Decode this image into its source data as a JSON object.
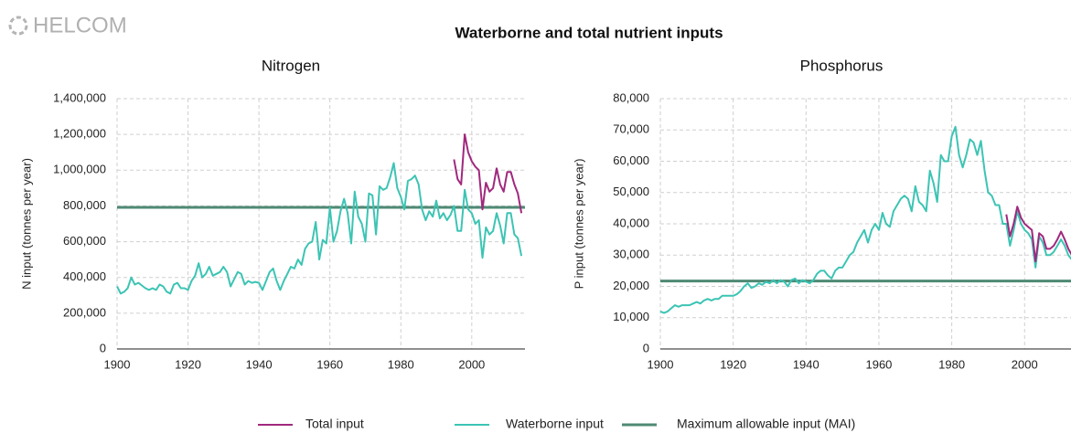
{
  "logo": "HELCOM",
  "title": "Waterborne and total nutrient inputs",
  "chart_data": [
    {
      "type": "line",
      "title": "Nitrogen",
      "ylabel": "N input (tonnes per year)",
      "xlim": [
        1900,
        2015
      ],
      "xticks": [
        1900,
        1920,
        1940,
        1960,
        1980,
        2000
      ],
      "ylim": [
        0,
        1400000
      ],
      "yticks": [
        0,
        {
          "value": 200000,
          "label": "200,000"
        },
        {
          "value": 400000,
          "label": "400,000"
        },
        {
          "value": 600000,
          "label": "600,000"
        },
        {
          "value": 800000,
          "label": "800,000"
        },
        {
          "value": 1000000,
          "label": "1,000,000"
        },
        {
          "value": 1200000,
          "label": "1,200,000"
        },
        {
          "value": 1400000,
          "label": "1,400,000"
        }
      ],
      "grid": true,
      "series": [
        {
          "name": "Total input",
          "color": "#a0287e",
          "x": [
            1995,
            1996,
            1997,
            1998,
            1999,
            2000,
            2001,
            2002,
            2003,
            2004,
            2005,
            2006,
            2007,
            2008,
            2009,
            2010,
            2011,
            2012,
            2013,
            2014
          ],
          "values": [
            1060000,
            950000,
            920000,
            1200000,
            1100000,
            1050000,
            1020000,
            1000000,
            780000,
            930000,
            880000,
            900000,
            1010000,
            920000,
            880000,
            990000,
            990000,
            920000,
            870000,
            760000
          ]
        },
        {
          "name": "Waterborne input",
          "color": "#3cc4b4",
          "x": [
            1900,
            1901,
            1902,
            1903,
            1904,
            1905,
            1906,
            1907,
            1908,
            1909,
            1910,
            1911,
            1912,
            1913,
            1914,
            1915,
            1916,
            1917,
            1918,
            1919,
            1920,
            1921,
            1922,
            1923,
            1924,
            1925,
            1926,
            1927,
            1928,
            1929,
            1930,
            1931,
            1932,
            1933,
            1934,
            1935,
            1936,
            1937,
            1938,
            1939,
            1940,
            1941,
            1942,
            1943,
            1944,
            1945,
            1946,
            1947,
            1948,
            1949,
            1950,
            1951,
            1952,
            1953,
            1954,
            1955,
            1956,
            1957,
            1958,
            1959,
            1960,
            1961,
            1962,
            1963,
            1964,
            1965,
            1966,
            1967,
            1968,
            1969,
            1970,
            1971,
            1972,
            1973,
            1974,
            1975,
            1976,
            1977,
            1978,
            1979,
            1980,
            1981,
            1982,
            1983,
            1984,
            1985,
            1986,
            1987,
            1988,
            1989,
            1990,
            1991,
            1992,
            1993,
            1994,
            1995,
            1996,
            1997,
            1998,
            1999,
            2000,
            2001,
            2002,
            2003,
            2004,
            2005,
            2006,
            2007,
            2008,
            2009,
            2010,
            2011,
            2012,
            2013,
            2014
          ],
          "values": [
            350000,
            310000,
            320000,
            340000,
            400000,
            360000,
            370000,
            355000,
            340000,
            330000,
            340000,
            330000,
            360000,
            350000,
            320000,
            310000,
            360000,
            370000,
            340000,
            340000,
            330000,
            380000,
            410000,
            480000,
            400000,
            420000,
            460000,
            410000,
            420000,
            430000,
            460000,
            430000,
            350000,
            390000,
            430000,
            420000,
            360000,
            380000,
            370000,
            375000,
            370000,
            330000,
            380000,
            430000,
            450000,
            380000,
            330000,
            380000,
            420000,
            460000,
            450000,
            500000,
            470000,
            560000,
            590000,
            600000,
            710000,
            500000,
            610000,
            590000,
            790000,
            600000,
            660000,
            770000,
            840000,
            760000,
            590000,
            880000,
            740000,
            700000,
            600000,
            870000,
            860000,
            640000,
            910000,
            890000,
            900000,
            960000,
            1040000,
            900000,
            850000,
            780000,
            940000,
            950000,
            970000,
            920000,
            780000,
            720000,
            770000,
            740000,
            830000,
            730000,
            760000,
            720000,
            750000,
            800000,
            660000,
            660000,
            890000,
            780000,
            760000,
            700000,
            720000,
            510000,
            680000,
            640000,
            660000,
            760000,
            690000,
            590000,
            760000,
            760000,
            640000,
            620000,
            520000
          ]
        },
        {
          "name": "Maximum allowable input (MAI)",
          "color": "#4f8a74",
          "x": [
            1900,
            2015
          ],
          "values": [
            792209,
            792209
          ]
        }
      ]
    },
    {
      "type": "line",
      "title": "Phosphorus",
      "ylabel": "P input (tonnes per year)",
      "xlim": [
        1900,
        2015
      ],
      "xticks": [
        1900,
        1920,
        1940,
        1960,
        1980,
        2000
      ],
      "ylim": [
        0,
        80000
      ],
      "yticks": [
        0,
        {
          "value": 10000,
          "label": "10,000"
        },
        {
          "value": 20000,
          "label": "20,000"
        },
        {
          "value": 30000,
          "label": "30,000"
        },
        {
          "value": 40000,
          "label": "40,000"
        },
        {
          "value": 50000,
          "label": "50,000"
        },
        {
          "value": 60000,
          "label": "60,000"
        },
        {
          "value": 70000,
          "label": "70,000"
        },
        {
          "value": 80000,
          "label": "80,000"
        }
      ],
      "grid": true,
      "series": [
        {
          "name": "Total input",
          "color": "#a0287e",
          "x": [
            1995,
            1996,
            1997,
            1998,
            1999,
            2000,
            2001,
            2002,
            2003,
            2004,
            2005,
            2006,
            2007,
            2008,
            2009,
            2010,
            2011,
            2012,
            2013,
            2014
          ],
          "values": [
            43000,
            36000,
            40000,
            45500,
            42000,
            40000,
            39000,
            38000,
            28000,
            37000,
            36000,
            32000,
            32000,
            33000,
            35000,
            37500,
            35000,
            32000,
            30000,
            28000
          ]
        },
        {
          "name": "Waterborne input",
          "color": "#3cc4b4",
          "x": [
            1900,
            1901,
            1902,
            1903,
            1904,
            1905,
            1906,
            1907,
            1908,
            1909,
            1910,
            1911,
            1912,
            1913,
            1914,
            1915,
            1916,
            1917,
            1918,
            1919,
            1920,
            1921,
            1922,
            1923,
            1924,
            1925,
            1926,
            1927,
            1928,
            1929,
            1930,
            1931,
            1932,
            1933,
            1934,
            1935,
            1936,
            1937,
            1938,
            1939,
            1940,
            1941,
            1942,
            1943,
            1944,
            1945,
            1946,
            1947,
            1948,
            1949,
            1950,
            1951,
            1952,
            1953,
            1954,
            1955,
            1956,
            1957,
            1958,
            1959,
            1960,
            1961,
            1962,
            1963,
            1964,
            1965,
            1966,
            1967,
            1968,
            1969,
            1970,
            1971,
            1972,
            1973,
            1974,
            1975,
            1976,
            1977,
            1978,
            1979,
            1980,
            1981,
            1982,
            1983,
            1984,
            1985,
            1986,
            1987,
            1988,
            1989,
            1990,
            1991,
            1992,
            1993,
            1994,
            1995,
            1996,
            1997,
            1998,
            1999,
            2000,
            2001,
            2002,
            2003,
            2004,
            2005,
            2006,
            2007,
            2008,
            2009,
            2010,
            2011,
            2012,
            2013,
            2014
          ],
          "values": [
            12000,
            11500,
            12000,
            13000,
            14000,
            13500,
            14000,
            14000,
            14000,
            14500,
            15000,
            14500,
            15500,
            16000,
            15500,
            16000,
            16000,
            17000,
            17000,
            17000,
            17000,
            17500,
            18500,
            20000,
            21000,
            19500,
            20000,
            21000,
            20500,
            21500,
            21000,
            22000,
            21000,
            22000,
            21500,
            20000,
            22000,
            22500,
            21000,
            22000,
            21500,
            21000,
            22000,
            24000,
            25000,
            25000,
            23500,
            22500,
            25000,
            26000,
            26000,
            28000,
            30000,
            31000,
            34000,
            36000,
            38000,
            34000,
            38000,
            40000,
            38000,
            43500,
            40000,
            39000,
            44000,
            46000,
            48000,
            49000,
            48000,
            44000,
            52000,
            47000,
            46000,
            44000,
            57000,
            53000,
            47000,
            62000,
            60000,
            60000,
            68000,
            71000,
            62000,
            58000,
            62000,
            67000,
            66000,
            62000,
            66500,
            57000,
            50000,
            49000,
            46000,
            46000,
            40000,
            40000,
            33000,
            38000,
            44000,
            40000,
            38000,
            37000,
            35000,
            26000,
            36000,
            34000,
            30000,
            30000,
            31000,
            33000,
            35000,
            33000,
            30000,
            28500,
            27000
          ]
        },
        {
          "name": "Maximum allowable input (MAI)",
          "color": "#4f8a74",
          "x": [
            1900,
            2015
          ],
          "values": [
            21716,
            21716
          ]
        }
      ]
    }
  ]
}
